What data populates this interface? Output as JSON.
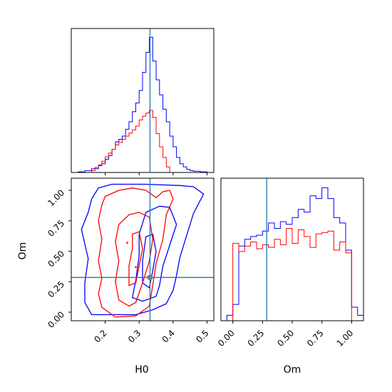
{
  "chart_data": [
    {
      "type": "histogram",
      "parameter": "H0",
      "panel": "top-left",
      "xlim": [
        0.1,
        0.52
      ],
      "truth": 0.332,
      "colors": {
        "blue": "#0000ff",
        "red": "#ff0000",
        "truth": "#1f77b4"
      },
      "ticks": [
        0.2,
        0.3,
        0.4,
        0.5
      ],
      "series": [
        {
          "color": "#0000ff",
          "edges": [
            0.12,
            0.14,
            0.16,
            0.18,
            0.19,
            0.2,
            0.21,
            0.22,
            0.23,
            0.24,
            0.25,
            0.26,
            0.27,
            0.28,
            0.29,
            0.3,
            0.31,
            0.32,
            0.33,
            0.34,
            0.35,
            0.36,
            0.37,
            0.38,
            0.39,
            0.4,
            0.41,
            0.42,
            0.43,
            0.44,
            0.45,
            0.46,
            0.48,
            0.5
          ],
          "counts": [
            1,
            3,
            6,
            11,
            14,
            21,
            27,
            37,
            49,
            53,
            58,
            69,
            81,
            97,
            111,
            131,
            160,
            192,
            216,
            178,
            148,
            124,
            101,
            81,
            58,
            41,
            24,
            14,
            9,
            5,
            3,
            2,
            1
          ]
        },
        {
          "color": "#ff0000",
          "edges": [
            0.16,
            0.17,
            0.18,
            0.19,
            0.2,
            0.21,
            0.22,
            0.23,
            0.24,
            0.25,
            0.26,
            0.27,
            0.28,
            0.29,
            0.3,
            0.31,
            0.32,
            0.33,
            0.34,
            0.35,
            0.36,
            0.37,
            0.38,
            0.39
          ],
          "counts": [
            3,
            8,
            12,
            18,
            25,
            31,
            37,
            44,
            48,
            53,
            58,
            63,
            68,
            74,
            84,
            90,
            95,
            99,
            88,
            62,
            41,
            24,
            9
          ]
        }
      ]
    },
    {
      "type": "contour",
      "panel": "bottom-left",
      "xlabel": "H0",
      "ylabel": "Om",
      "xlim": [
        0.1,
        0.52
      ],
      "ylim": [
        -0.07,
        1.1
      ],
      "xticks": [
        0.2,
        0.3,
        0.4,
        0.5
      ],
      "yticks": [
        0.0,
        0.25,
        0.5,
        0.75,
        1.0
      ],
      "truth": {
        "x": 0.332,
        "y": 0.285
      },
      "truth_point": {
        "x": 0.332,
        "y": 0.285
      },
      "scatter_points": [
        {
          "x": 0.265,
          "y": 0.57
        },
        {
          "x": 0.29,
          "y": 0.37
        },
        {
          "x": 0.325,
          "y": 0.29
        }
      ],
      "series": [
        {
          "color": "#0000ff",
          "contours": [
            [
              [
                0.18,
                1.02
              ],
              [
                0.22,
                1.05
              ],
              [
                0.32,
                1.05
              ],
              [
                0.42,
                1.04
              ],
              [
                0.46,
                1.03
              ],
              [
                0.49,
                0.97
              ],
              [
                0.46,
                0.81
              ],
              [
                0.44,
                0.63
              ],
              [
                0.42,
                0.45
              ],
              [
                0.41,
                0.3
              ],
              [
                0.4,
                0.18
              ],
              [
                0.38,
                0.07
              ],
              [
                0.34,
                0.02
              ],
              [
                0.29,
                -0.02
              ],
              [
                0.23,
                -0.02
              ],
              [
                0.16,
                -0.02
              ],
              [
                0.14,
                0.08
              ],
              [
                0.14,
                0.24
              ],
              [
                0.15,
                0.44
              ],
              [
                0.14,
                0.56
              ],
              [
                0.13,
                0.68
              ],
              [
                0.15,
                0.82
              ],
              [
                0.16,
                0.93
              ]
            ],
            [
              [
                0.32,
                0.82
              ],
              [
                0.36,
                0.87
              ],
              [
                0.39,
                0.86
              ],
              [
                0.41,
                0.72
              ],
              [
                0.39,
                0.55
              ],
              [
                0.37,
                0.38
              ],
              [
                0.36,
                0.22
              ],
              [
                0.35,
                0.13
              ],
              [
                0.31,
                0.09
              ],
              [
                0.28,
                0.12
              ],
              [
                0.29,
                0.26
              ],
              [
                0.3,
                0.46
              ],
              [
                0.3,
                0.64
              ]
            ],
            [
              [
                0.32,
                0.62
              ],
              [
                0.34,
                0.64
              ],
              [
                0.35,
                0.5
              ],
              [
                0.34,
                0.34
              ],
              [
                0.33,
                0.2
              ],
              [
                0.31,
                0.24
              ],
              [
                0.31,
                0.42
              ]
            ]
          ]
        },
        {
          "color": "#ff0000",
          "contours": [
            [
              [
                0.2,
                0.95
              ],
              [
                0.24,
                1.0
              ],
              [
                0.28,
                1.02
              ],
              [
                0.32,
                1.0
              ],
              [
                0.35,
                0.94
              ],
              [
                0.37,
                0.99
              ],
              [
                0.39,
                1.0
              ],
              [
                0.4,
                0.93
              ],
              [
                0.38,
                0.8
              ],
              [
                0.37,
                0.6
              ],
              [
                0.35,
                0.4
              ],
              [
                0.34,
                0.22
              ],
              [
                0.33,
                0.05
              ],
              [
                0.29,
                -0.03
              ],
              [
                0.23,
                -0.04
              ],
              [
                0.19,
                0.04
              ],
              [
                0.18,
                0.15
              ],
              [
                0.19,
                0.28
              ],
              [
                0.18,
                0.42
              ],
              [
                0.19,
                0.6
              ],
              [
                0.18,
                0.75
              ],
              [
                0.19,
                0.88
              ]
            ],
            [
              [
                0.24,
                0.72
              ],
              [
                0.27,
                0.8
              ],
              [
                0.3,
                0.82
              ],
              [
                0.33,
                0.78
              ],
              [
                0.34,
                0.6
              ],
              [
                0.33,
                0.42
              ],
              [
                0.31,
                0.24
              ],
              [
                0.29,
                0.08
              ],
              [
                0.27,
                0.05
              ],
              [
                0.24,
                0.1
              ],
              [
                0.23,
                0.25
              ],
              [
                0.24,
                0.42
              ],
              [
                0.23,
                0.58
              ]
            ],
            [
              [
                0.28,
                0.64
              ],
              [
                0.3,
                0.66
              ],
              [
                0.31,
                0.52
              ],
              [
                0.3,
                0.38
              ],
              [
                0.29,
                0.24
              ],
              [
                0.27,
                0.22
              ],
              [
                0.27,
                0.38
              ],
              [
                0.28,
                0.52
              ]
            ]
          ]
        }
      ]
    },
    {
      "type": "histogram",
      "parameter": "Om",
      "panel": "bottom-right",
      "xlabel": "Om",
      "xlim": [
        -0.1,
        1.1
      ],
      "truth": 0.285,
      "ticks": [
        0.0,
        0.25,
        0.5,
        0.75,
        1.0
      ],
      "series": [
        {
          "color": "#0000ff",
          "edges": [
            -0.05,
            0.0,
            0.05,
            0.1,
            0.15,
            0.2,
            0.25,
            0.3,
            0.35,
            0.4,
            0.45,
            0.5,
            0.55,
            0.6,
            0.65,
            0.7,
            0.75,
            0.8,
            0.85,
            0.9,
            0.95,
            1.0,
            1.05,
            1.1
          ],
          "counts": [
            4,
            12,
            55,
            60,
            62,
            63,
            66,
            72,
            68,
            73,
            71,
            76,
            82,
            80,
            92,
            90,
            98,
            90,
            76,
            72,
            52,
            10,
            4
          ]
        },
        {
          "color": "#ff0000",
          "edges": [
            0.0,
            0.05,
            0.1,
            0.15,
            0.2,
            0.25,
            0.3,
            0.35,
            0.4,
            0.45,
            0.5,
            0.55,
            0.6,
            0.65,
            0.7,
            0.75,
            0.8,
            0.85,
            0.9,
            0.95,
            1.0
          ],
          "counts": [
            57,
            51,
            55,
            58,
            53,
            56,
            54,
            60,
            56,
            68,
            57,
            67,
            62,
            54,
            64,
            65,
            66,
            52,
            58,
            50
          ]
        }
      ]
    }
  ]
}
